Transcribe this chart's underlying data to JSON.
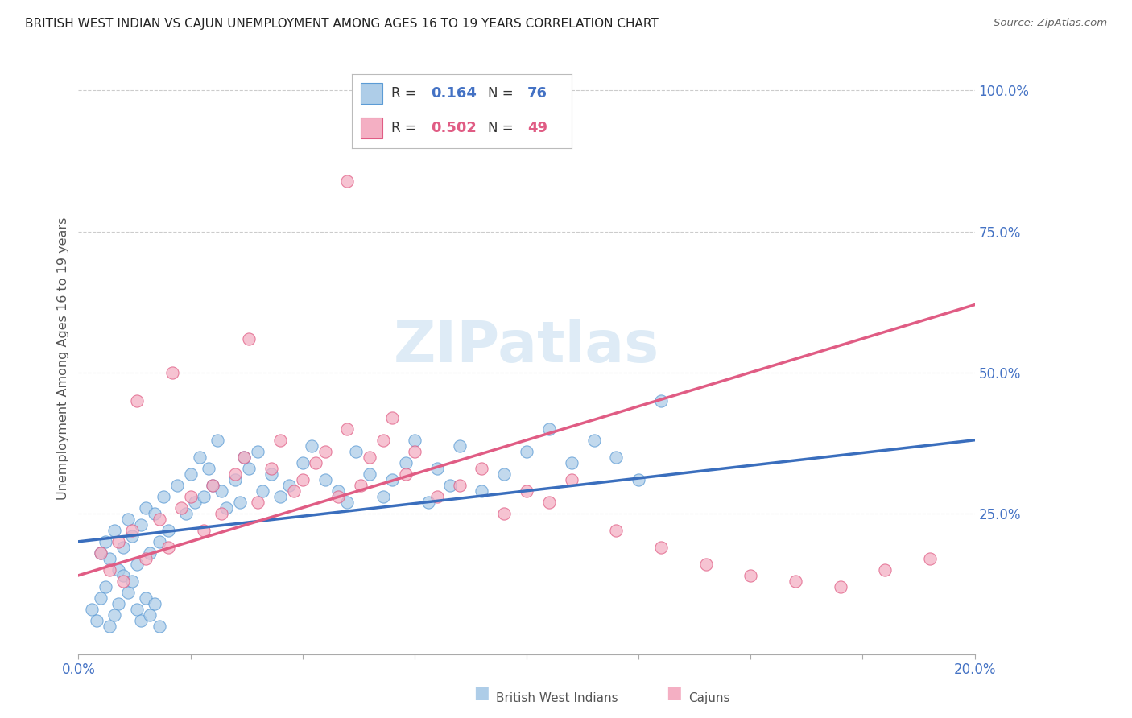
{
  "title": "BRITISH WEST INDIAN VS CAJUN UNEMPLOYMENT AMONG AGES 16 TO 19 YEARS CORRELATION CHART",
  "source": "Source: ZipAtlas.com",
  "ylabel": "Unemployment Among Ages 16 to 19 years",
  "bwi_R": 0.164,
  "bwi_N": 76,
  "cajun_R": 0.502,
  "cajun_N": 49,
  "bwi_color": "#aecde8",
  "cajun_color": "#f4afc3",
  "bwi_edge_color": "#5b9bd5",
  "cajun_edge_color": "#e05c84",
  "bwi_line_color": "#3a6ebd",
  "cajun_line_color": "#e05c84",
  "watermark_color": "#c8dff0",
  "grid_color": "#cccccc",
  "axis_label_color": "#4472c4",
  "bwi_scatter_x": [
    0.5,
    0.6,
    0.7,
    0.8,
    0.9,
    1.0,
    1.1,
    1.2,
    1.3,
    1.4,
    1.5,
    1.6,
    1.7,
    1.8,
    1.9,
    2.0,
    2.2,
    2.4,
    2.5,
    2.6,
    2.7,
    2.8,
    2.9,
    3.0,
    3.1,
    3.2,
    3.3,
    3.5,
    3.6,
    3.7,
    3.8,
    4.0,
    4.1,
    4.3,
    4.5,
    4.7,
    5.0,
    5.2,
    5.5,
    5.8,
    6.0,
    6.2,
    6.5,
    6.8,
    7.0,
    7.3,
    7.5,
    7.8,
    8.0,
    8.3,
    8.5,
    9.0,
    9.5,
    10.0,
    10.5,
    11.0,
    11.5,
    12.0,
    12.5,
    13.0,
    0.3,
    0.4,
    0.5,
    0.6,
    0.7,
    0.8,
    0.9,
    1.0,
    1.1,
    1.2,
    1.3,
    1.4,
    1.5,
    1.6,
    1.7,
    1.8
  ],
  "bwi_scatter_y": [
    18,
    20,
    17,
    22,
    15,
    19,
    24,
    21,
    16,
    23,
    26,
    18,
    25,
    20,
    28,
    22,
    30,
    25,
    32,
    27,
    35,
    28,
    33,
    30,
    38,
    29,
    26,
    31,
    27,
    35,
    33,
    36,
    29,
    32,
    28,
    30,
    34,
    37,
    31,
    29,
    27,
    36,
    32,
    28,
    31,
    34,
    38,
    27,
    33,
    30,
    37,
    29,
    32,
    36,
    40,
    34,
    38,
    35,
    31,
    45,
    8,
    6,
    10,
    12,
    5,
    7,
    9,
    14,
    11,
    13,
    8,
    6,
    10,
    7,
    9,
    5
  ],
  "cajun_scatter_x": [
    0.5,
    0.7,
    0.9,
    1.0,
    1.2,
    1.5,
    1.8,
    2.0,
    2.3,
    2.5,
    2.8,
    3.0,
    3.2,
    3.5,
    3.7,
    4.0,
    4.3,
    4.5,
    4.8,
    5.0,
    5.3,
    5.5,
    5.8,
    6.0,
    6.3,
    6.5,
    6.8,
    7.0,
    7.3,
    7.5,
    8.0,
    8.5,
    9.0,
    9.5,
    10.0,
    10.5,
    11.0,
    12.0,
    13.0,
    14.0,
    15.0,
    16.0,
    17.0,
    18.0,
    19.0,
    1.3,
    2.1,
    3.8,
    6.0
  ],
  "cajun_scatter_y": [
    18,
    15,
    20,
    13,
    22,
    17,
    24,
    19,
    26,
    28,
    22,
    30,
    25,
    32,
    35,
    27,
    33,
    38,
    29,
    31,
    34,
    36,
    28,
    40,
    30,
    35,
    38,
    42,
    32,
    36,
    28,
    30,
    33,
    25,
    29,
    27,
    31,
    22,
    19,
    16,
    14,
    13,
    12,
    15,
    17,
    45,
    50,
    56,
    84
  ]
}
